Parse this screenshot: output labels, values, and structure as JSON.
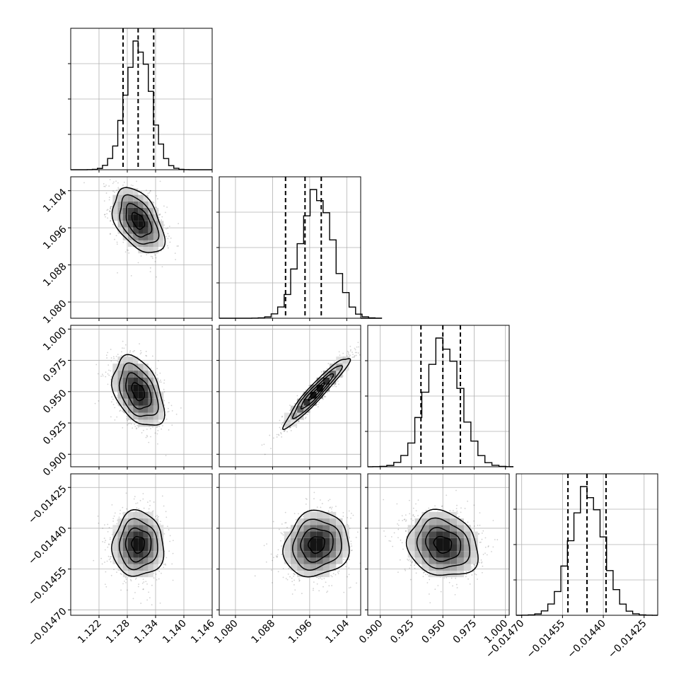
{
  "chart_data": {
    "type": "corner",
    "parameters": [
      {
        "index": 0,
        "range": [
          1.116,
          1.146
        ],
        "ticks": [
          1.122,
          1.128,
          1.134,
          1.14,
          1.146
        ],
        "tick_labels": [
          "1.122",
          "1.128",
          "1.134",
          "1.140",
          "1.146"
        ],
        "mean": 1.1303,
        "std": 0.0027,
        "quantiles": [
          1.1271,
          1.1303,
          1.1336
        ]
      },
      {
        "index": 1,
        "range": [
          1.0765,
          1.107
        ],
        "ticks": [
          1.08,
          1.088,
          1.096,
          1.104
        ],
        "tick_labels": [
          "1.080",
          "1.088",
          "1.096",
          "1.104"
        ],
        "mean": 1.0975,
        "std": 0.0035,
        "quantiles": [
          1.0908,
          1.095,
          1.0985
        ]
      },
      {
        "index": 2,
        "range": [
          0.89,
          1.003
        ],
        "ticks": [
          0.9,
          0.925,
          0.95,
          0.975,
          1.0
        ],
        "tick_labels": [
          "0.900",
          "0.925",
          "0.950",
          "0.975",
          "1.000"
        ],
        "mean": 0.95,
        "std": 0.014,
        "quantiles": [
          0.9325,
          0.95,
          0.964
        ]
      },
      {
        "index": 3,
        "range": [
          -0.01472,
          -0.0142
        ],
        "ticks": [
          -0.0147,
          -0.01455,
          -0.0144,
          -0.01425
        ],
        "tick_labels": [
          "−0.01470",
          "−0.01455",
          "−0.01440",
          "−0.01425"
        ],
        "mean": -0.01446,
        "std": 6e-05,
        "quantiles": [
          -0.01453,
          -0.01446,
          -0.01439
        ]
      }
    ],
    "correlations": [
      [
        0,
        1,
        -0.45
      ],
      [
        0,
        2,
        -0.4
      ],
      [
        1,
        2,
        0.95
      ],
      [
        0,
        3,
        0.0
      ],
      [
        1,
        3,
        0.1
      ],
      [
        2,
        3,
        -0.15
      ]
    ],
    "contour_levels_sigma": [
      0.5,
      1.0,
      1.5,
      2.0
    ],
    "grid": true,
    "legend": "none"
  }
}
